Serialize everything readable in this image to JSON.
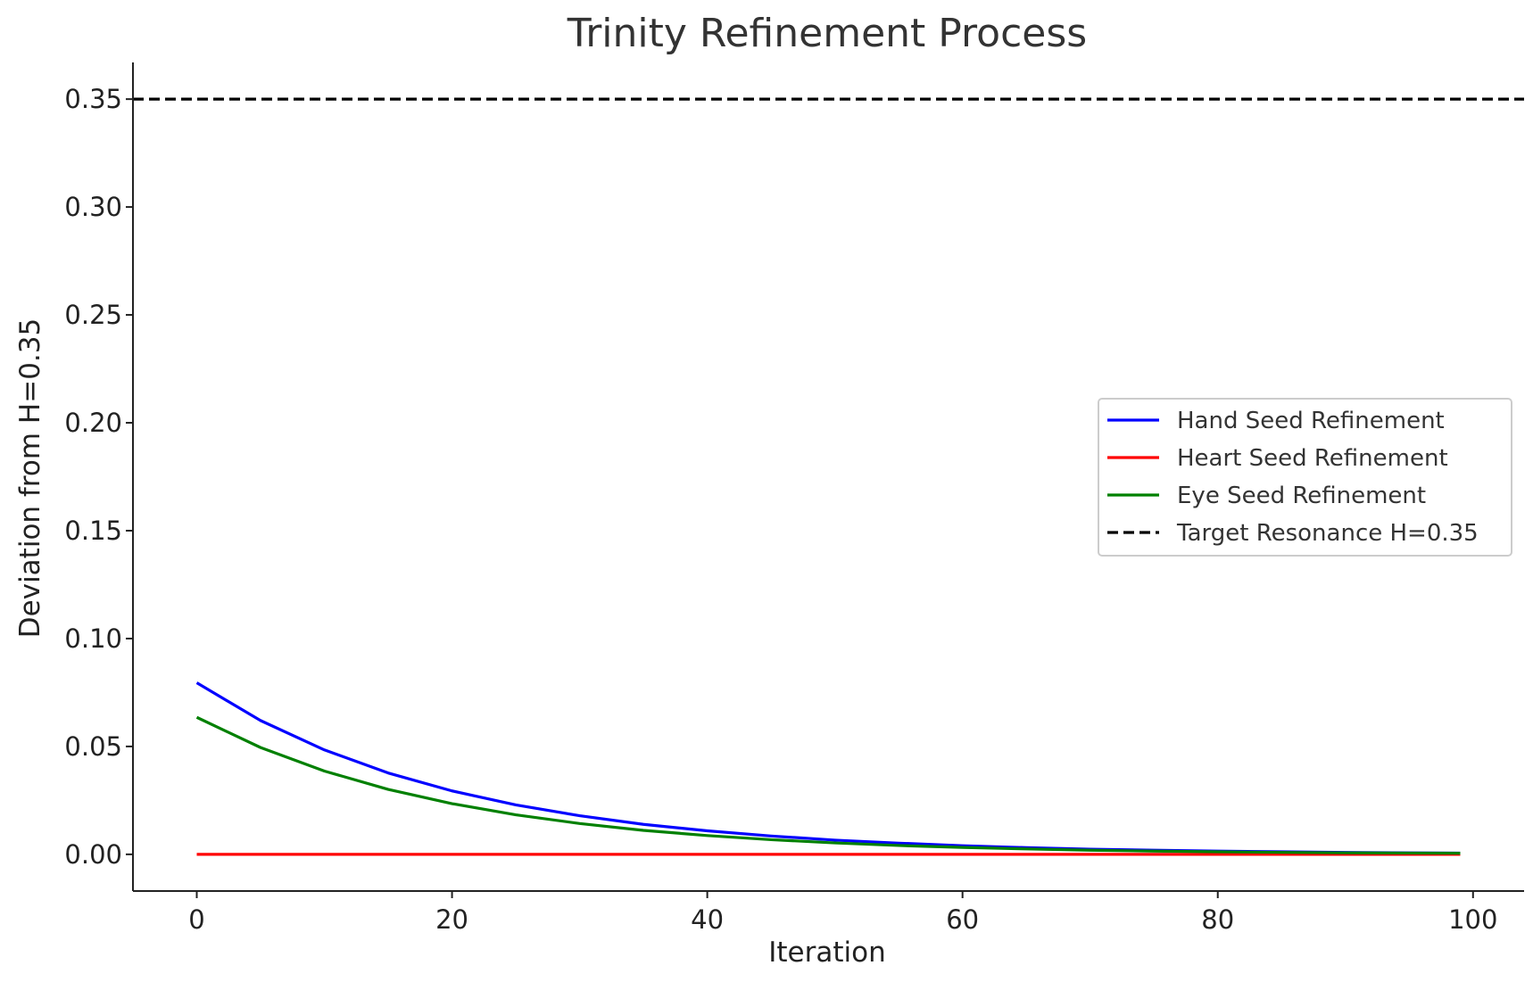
{
  "chart_data": {
    "type": "line",
    "title": "Trinity Refinement Process",
    "xlabel": "Iteration",
    "ylabel": "Deviation from H=0.35",
    "xlim": [
      -5,
      104
    ],
    "ylim": [
      -0.017,
      0.367
    ],
    "x_ticks": [
      {
        "value": 0,
        "label": "0"
      },
      {
        "value": 20,
        "label": "20"
      },
      {
        "value": 40,
        "label": "40"
      },
      {
        "value": 60,
        "label": "60"
      },
      {
        "value": 80,
        "label": "80"
      },
      {
        "value": 100,
        "label": "100"
      }
    ],
    "y_ticks": [
      {
        "value": 0.0,
        "label": "0.00"
      },
      {
        "value": 0.05,
        "label": "0.05"
      },
      {
        "value": 0.1,
        "label": "0.10"
      },
      {
        "value": 0.15,
        "label": "0.15"
      },
      {
        "value": 0.2,
        "label": "0.20"
      },
      {
        "value": 0.25,
        "label": "0.25"
      },
      {
        "value": 0.3,
        "label": "0.30"
      },
      {
        "value": 0.35,
        "label": "0.35"
      }
    ],
    "x": [
      0,
      5,
      10,
      15,
      20,
      25,
      30,
      35,
      40,
      45,
      50,
      55,
      60,
      65,
      70,
      75,
      80,
      85,
      90,
      95,
      99
    ],
    "series": [
      {
        "name": "Hand Seed Refinement",
        "color": "#0000ff",
        "style": "solid",
        "values": [
          0.0795,
          0.062,
          0.0484,
          0.0377,
          0.0294,
          0.0229,
          0.0179,
          0.0139,
          0.0109,
          0.0085,
          0.0066,
          0.0052,
          0.004,
          0.0031,
          0.0024,
          0.0019,
          0.0015,
          0.0012,
          0.0009,
          0.0007,
          0.0006
        ]
      },
      {
        "name": "Heart Seed Refinement",
        "color": "#ff0000",
        "style": "solid",
        "values": [
          0,
          0,
          0,
          0,
          0,
          0,
          0,
          0,
          0,
          0,
          0,
          0,
          0,
          0,
          0,
          0,
          0,
          0,
          0,
          0,
          0
        ]
      },
      {
        "name": "Eye Seed Refinement",
        "color": "#008000",
        "style": "solid",
        "values": [
          0.0635,
          0.0495,
          0.0386,
          0.0301,
          0.0235,
          0.0183,
          0.0143,
          0.0111,
          0.0087,
          0.0068,
          0.0053,
          0.0041,
          0.0032,
          0.0025,
          0.0019,
          0.0015,
          0.0012,
          0.0009,
          0.0007,
          0.0006,
          0.0005
        ]
      }
    ],
    "reference_lines": [
      {
        "name": "Target Resonance H=0.35",
        "y": 0.35,
        "color": "#000000",
        "style": "dashed"
      }
    ],
    "legend_position": "center-right",
    "grid": false
  }
}
